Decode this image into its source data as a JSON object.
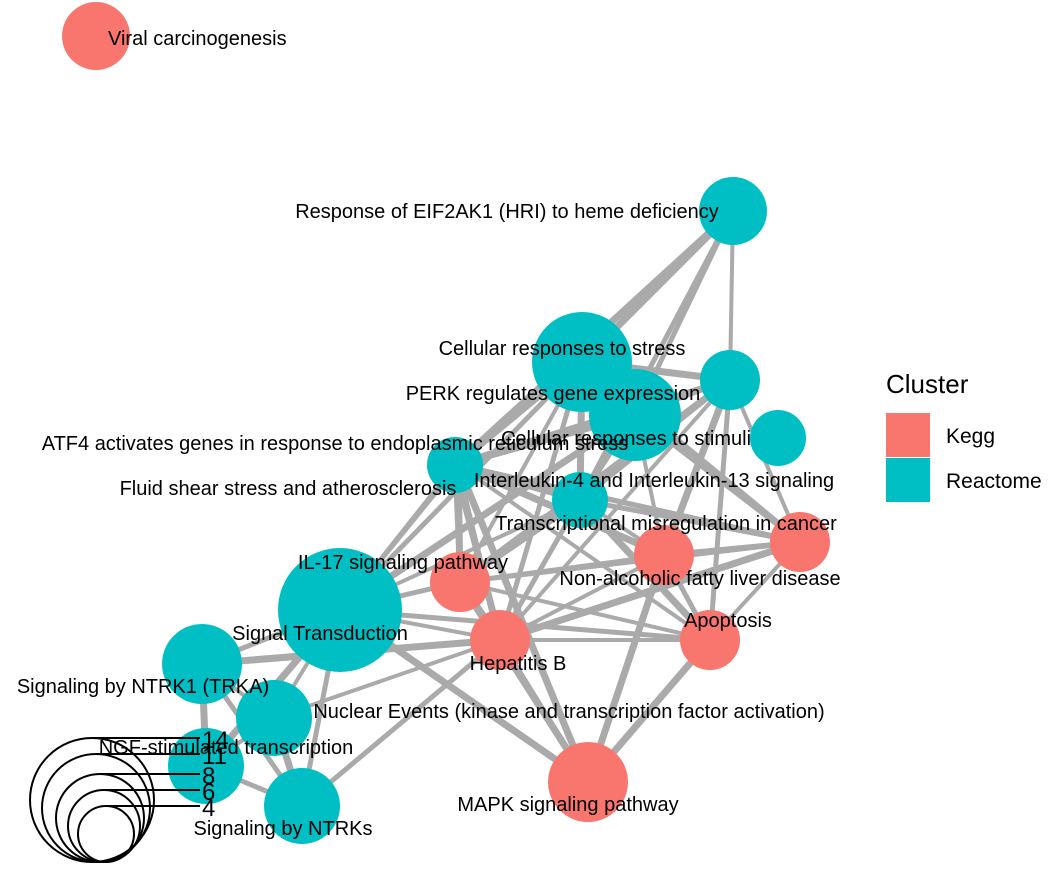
{
  "colors": {
    "Kegg": "#F8766D",
    "Reactome": "#00BFC4",
    "edge": "#AAAAAA"
  },
  "legend": {
    "title": "Cluster",
    "items": [
      {
        "label": "Kegg",
        "color": "#F8766D"
      },
      {
        "label": "Reactome",
        "color": "#00BFC4"
      }
    ]
  },
  "size_legend": {
    "labels": [
      "14",
      "11",
      "8",
      "6",
      "4"
    ]
  },
  "nodes": [
    {
      "id": "viral",
      "label": "Viral carcinogenesis",
      "cluster": "Kegg"
    },
    {
      "id": "eif2ak1",
      "label": "Response of EIF2AK1 (HRI) to heme deficiency",
      "cluster": "Reactome"
    },
    {
      "id": "cell_stress",
      "label": "Cellular responses to stress",
      "cluster": "Reactome"
    },
    {
      "id": "perk",
      "label": "PERK regulates gene expression",
      "cluster": "Reactome"
    },
    {
      "id": "cell_stimuli",
      "label": "Cellular responses to stimuli",
      "cluster": "Reactome"
    },
    {
      "id": "atf4",
      "label": "ATF4 activates genes in response to endoplasmic reticulum  stress",
      "cluster": "Reactome"
    },
    {
      "id": "fluid",
      "label": "Fluid shear stress and atherosclerosis",
      "cluster": "Kegg"
    },
    {
      "id": "il4",
      "label": "Interleukin-4 and Interleukin-13 signaling",
      "cluster": "Reactome"
    },
    {
      "id": "transcr",
      "label": "Transcriptional misregulation in cancer",
      "cluster": "Kegg"
    },
    {
      "id": "il17",
      "label": "IL-17 signaling pathway",
      "cluster": "Kegg"
    },
    {
      "id": "nafld",
      "label": "Non-alcoholic fatty liver disease",
      "cluster": "Kegg"
    },
    {
      "id": "signal",
      "label": "Signal Transduction",
      "cluster": "Reactome"
    },
    {
      "id": "apoptosis",
      "label": "Apoptosis",
      "cluster": "Kegg"
    },
    {
      "id": "hepb",
      "label": "Hepatitis B",
      "cluster": "Kegg"
    },
    {
      "id": "ntrk1",
      "label": "Signaling by NTRK1 (TRKA)",
      "cluster": "Reactome"
    },
    {
      "id": "nuclear",
      "label": "Nuclear Events (kinase and transcription factor activation)",
      "cluster": "Reactome"
    },
    {
      "id": "ngf",
      "label": "NGF-stimulated transcription",
      "cluster": "Reactome"
    },
    {
      "id": "ntrks",
      "label": "Signaling by NTRKs",
      "cluster": "Reactome"
    },
    {
      "id": "mapk",
      "label": "MAPK signaling pathway",
      "cluster": "Kegg"
    }
  ],
  "edges": [
    [
      "eif2ak1",
      "cell_stress"
    ],
    [
      "eif2ak1",
      "perk"
    ],
    [
      "eif2ak1",
      "cell_stimuli"
    ],
    [
      "eif2ak1",
      "atf4"
    ],
    [
      "eif2ak1",
      "il4"
    ],
    [
      "cell_stress",
      "perk"
    ],
    [
      "cell_stress",
      "cell_stimuli"
    ],
    [
      "cell_stress",
      "atf4"
    ],
    [
      "cell_stress",
      "fluid"
    ],
    [
      "cell_stress",
      "il4"
    ],
    [
      "cell_stress",
      "signal"
    ],
    [
      "cell_stress",
      "il17"
    ],
    [
      "cell_stress",
      "transcr"
    ],
    [
      "cell_stress",
      "hepb"
    ],
    [
      "perk",
      "cell_stimuli"
    ],
    [
      "perk",
      "atf4"
    ],
    [
      "perk",
      "il4"
    ],
    [
      "perk",
      "fluid"
    ],
    [
      "perk",
      "signal"
    ],
    [
      "perk",
      "transcr"
    ],
    [
      "perk",
      "nafld"
    ],
    [
      "cell_stimuli",
      "atf4"
    ],
    [
      "cell_stimuli",
      "il4"
    ],
    [
      "cell_stimuli",
      "transcr"
    ],
    [
      "cell_stimuli",
      "nafld"
    ],
    [
      "cell_stimuli",
      "apoptosis"
    ],
    [
      "cell_stimuli",
      "hepb"
    ],
    [
      "cell_stimuli",
      "il17"
    ],
    [
      "cell_stimuli",
      "fluid"
    ],
    [
      "atf4",
      "fluid"
    ],
    [
      "atf4",
      "il4"
    ],
    [
      "atf4",
      "il17"
    ],
    [
      "atf4",
      "signal"
    ],
    [
      "atf4",
      "hepb"
    ],
    [
      "atf4",
      "transcr"
    ],
    [
      "fluid",
      "il4"
    ],
    [
      "fluid",
      "il17"
    ],
    [
      "fluid",
      "signal"
    ],
    [
      "fluid",
      "hepb"
    ],
    [
      "fluid",
      "nafld"
    ],
    [
      "fluid",
      "transcr"
    ],
    [
      "fluid",
      "apoptosis"
    ],
    [
      "fluid",
      "mapk"
    ],
    [
      "il4",
      "transcr"
    ],
    [
      "il4",
      "nafld"
    ],
    [
      "il4",
      "il17"
    ],
    [
      "il4",
      "hepb"
    ],
    [
      "il4",
      "signal"
    ],
    [
      "il4",
      "apoptosis"
    ],
    [
      "transcr",
      "nafld"
    ],
    [
      "transcr",
      "apoptosis"
    ],
    [
      "transcr",
      "hepb"
    ],
    [
      "transcr",
      "il17"
    ],
    [
      "il17",
      "nafld"
    ],
    [
      "il17",
      "hepb"
    ],
    [
      "il17",
      "signal"
    ],
    [
      "il17",
      "apoptosis"
    ],
    [
      "il17",
      "mapk"
    ],
    [
      "nafld",
      "apoptosis"
    ],
    [
      "nafld",
      "hepb"
    ],
    [
      "nafld",
      "mapk"
    ],
    [
      "signal",
      "ntrk1"
    ],
    [
      "signal",
      "nuclear"
    ],
    [
      "signal",
      "ngf"
    ],
    [
      "signal",
      "ntrks"
    ],
    [
      "signal",
      "hepb"
    ],
    [
      "signal",
      "mapk"
    ],
    [
      "signal",
      "apoptosis"
    ],
    [
      "apoptosis",
      "hepb"
    ],
    [
      "apoptosis",
      "mapk"
    ],
    [
      "hepb",
      "mapk"
    ],
    [
      "hepb",
      "nuclear"
    ],
    [
      "hepb",
      "ntrk1"
    ],
    [
      "hepb",
      "ntrks"
    ],
    [
      "ntrk1",
      "nuclear"
    ],
    [
      "ntrk1",
      "ngf"
    ],
    [
      "ntrk1",
      "ntrks"
    ],
    [
      "nuclear",
      "ngf"
    ],
    [
      "nuclear",
      "ntrks"
    ],
    [
      "ngf",
      "ntrks"
    ]
  ]
}
